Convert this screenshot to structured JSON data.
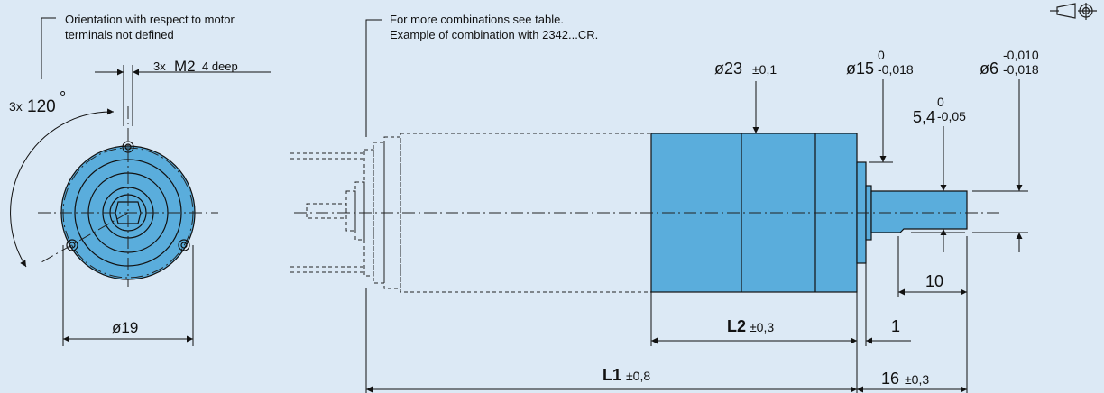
{
  "notes": {
    "orientation_line1": "Orientation with respect to motor",
    "orientation_line2": "terminals not defined",
    "combination_line1": "For more combinations see table.",
    "combination_line2": "Example of combination with 2342...CR."
  },
  "front_view": {
    "thread_qty": "3x",
    "thread_size": "M2",
    "thread_depth": "4 deep",
    "angle_qty": "3x",
    "angle_value": "120",
    "angle_unit": "°",
    "bolt_circle": "ø19"
  },
  "side_view": {
    "d_body": "ø23",
    "d_body_tol": "±0,1",
    "d_pilot": "ø15",
    "d_pilot_tol_upper": "0",
    "d_pilot_tol_lower": "-0,018",
    "d_shaft": "ø6",
    "d_shaft_tol_upper": "-0,010",
    "d_shaft_tol_lower": "-0,018",
    "flat": "5,4",
    "flat_tol_upper": "0",
    "flat_tol_lower": "-0,05",
    "flat_length": "10",
    "l2": "L2",
    "l2_tol": "±0,3",
    "pilot_length": "1",
    "l1": "L1",
    "l1_tol": "±0,8",
    "shaft_length": "16",
    "shaft_length_tol": "±0,3"
  },
  "colors": {
    "background": "#dce9f5",
    "body": "#5aaddc",
    "phantom": "#b4d4ee"
  }
}
